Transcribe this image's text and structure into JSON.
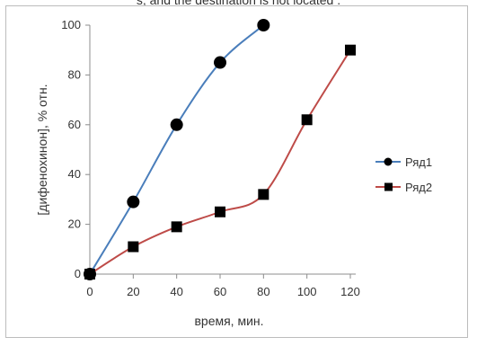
{
  "caption": "s, and the destination is not located .",
  "chart_data": {
    "type": "line",
    "title": "",
    "xlabel": "время, мин.",
    "ylabel": "[дифенохинон], % отн.",
    "xlim": [
      0,
      120
    ],
    "ylim": [
      0,
      100
    ],
    "x_ticks": [
      0,
      20,
      40,
      60,
      80,
      100,
      120
    ],
    "y_ticks": [
      0,
      20,
      40,
      60,
      80,
      100
    ],
    "grid": false,
    "legend_position": "right",
    "series": [
      {
        "name": "Ряд1",
        "color": "#4a7ebb",
        "marker": "circle",
        "marker_color": "#000000",
        "x": [
          0,
          20,
          40,
          60,
          80
        ],
        "y": [
          0,
          29,
          60,
          85,
          100
        ]
      },
      {
        "name": "Ряд2",
        "color": "#be4b48",
        "marker": "square",
        "marker_color": "#000000",
        "x": [
          0,
          20,
          40,
          60,
          80,
          100,
          120
        ],
        "y": [
          0,
          11,
          19,
          25,
          32,
          62,
          90
        ]
      }
    ]
  }
}
